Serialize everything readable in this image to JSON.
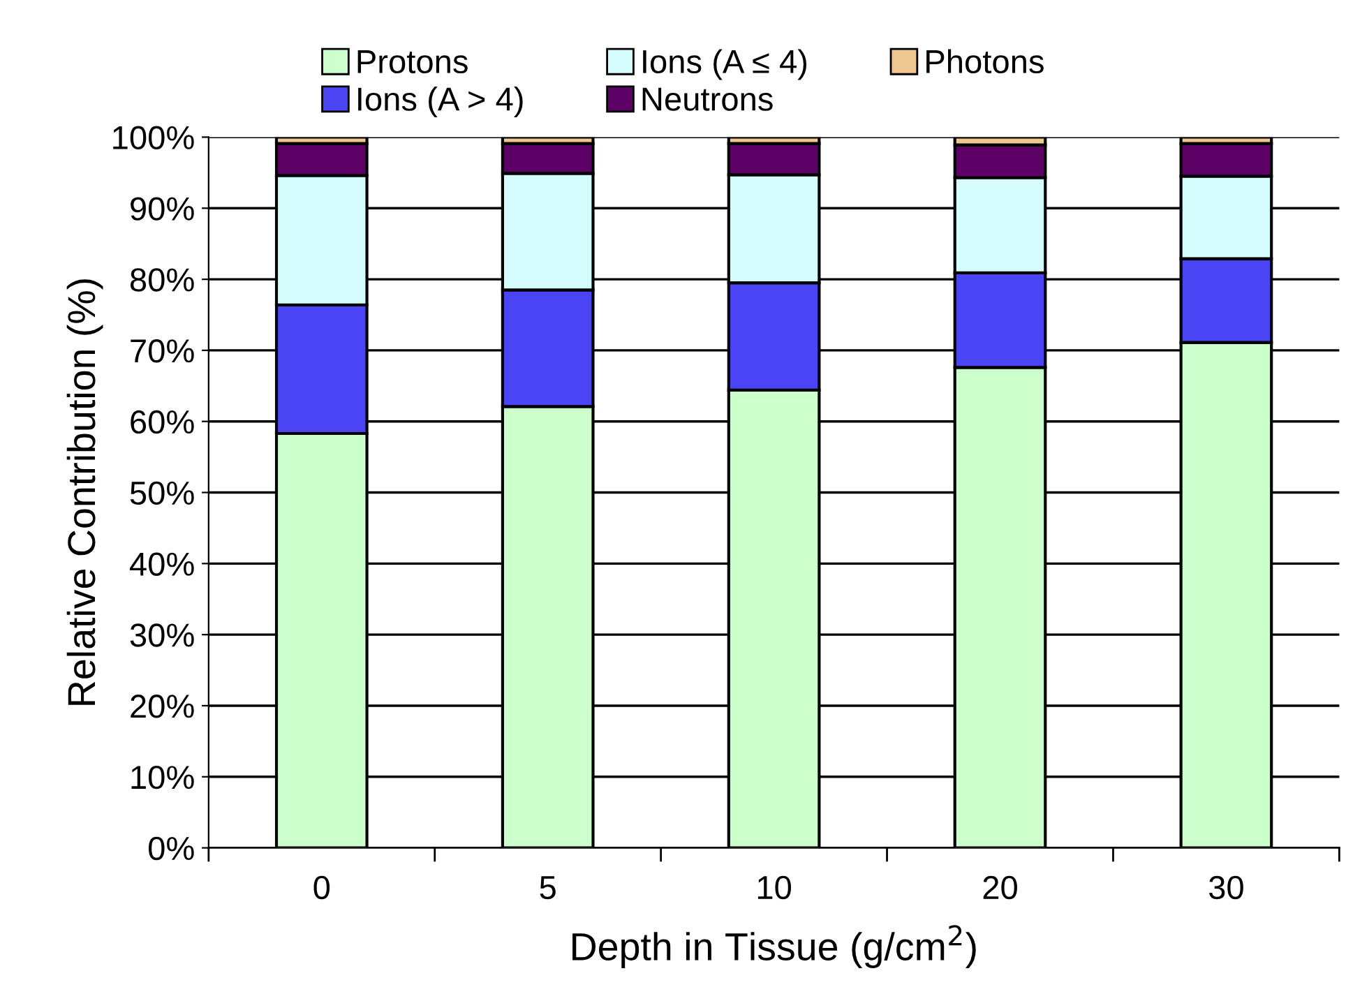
{
  "chart_data": {
    "type": "bar",
    "stacked": true,
    "xlabel": "Depth in Tissue (g/cm$^{2}$)",
    "ylabel": "Relative Contribution (%)",
    "categories": [
      "0",
      "5",
      "10",
      "20",
      "30"
    ],
    "series": [
      {
        "name": "Protons",
        "color": "#ccffcc",
        "values": [
          58.3,
          62.1,
          64.4,
          67.6,
          71.1
        ]
      },
      {
        "name": "Ions (A > 4)",
        "color": "#4a44f5",
        "values": [
          18.1,
          16.4,
          15.1,
          13.3,
          11.8
        ]
      },
      {
        "name": "Ions (A ≤ 4)",
        "color": "#d4fcfc",
        "values": [
          18.2,
          16.4,
          15.2,
          13.4,
          11.6
        ]
      },
      {
        "name": "Neutrons",
        "color": "#5c0066",
        "values": [
          4.5,
          4.2,
          4.4,
          4.6,
          4.6
        ]
      },
      {
        "name": "Photons",
        "color": "#edc690",
        "values": [
          0.9,
          0.9,
          0.9,
          1.1,
          0.9
        ]
      }
    ],
    "ylim": [
      0,
      100
    ],
    "yticks": [
      {
        "value": 0,
        "label": "0%"
      },
      {
        "value": 10,
        "label": "10%"
      },
      {
        "value": 20,
        "label": "20%"
      },
      {
        "value": 30,
        "label": "30%"
      },
      {
        "value": 40,
        "label": "40%"
      },
      {
        "value": 50,
        "label": "50%"
      },
      {
        "value": 60,
        "label": "60%"
      },
      {
        "value": 70,
        "label": "70%"
      },
      {
        "value": 80,
        "label": "80%"
      },
      {
        "value": 90,
        "label": "90%"
      },
      {
        "value": 100,
        "label": "100%"
      }
    ],
    "grid": "y",
    "legend": "top"
  }
}
